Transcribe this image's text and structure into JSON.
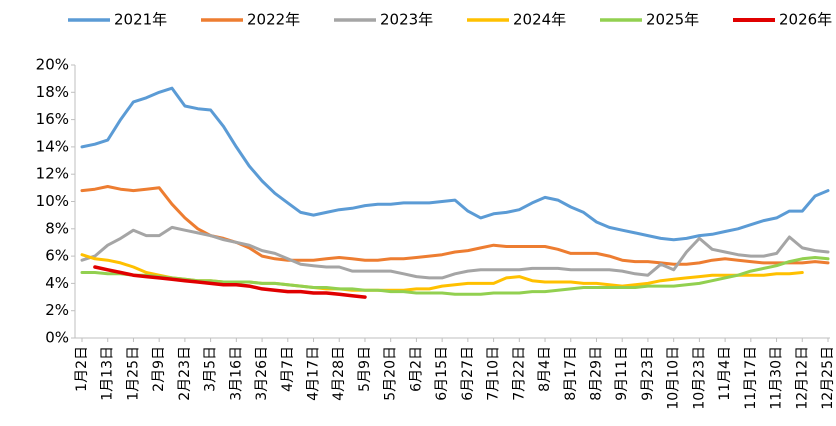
{
  "chart_data": {
    "type": "line",
    "categories": [
      "1月2日",
      null,
      "1月13日",
      null,
      "1月25日",
      null,
      "2月9日",
      null,
      "2月23日",
      null,
      "3月5日",
      null,
      "3月16日",
      null,
      "3月26日",
      null,
      "4月7日",
      null,
      "4月17日",
      null,
      "4月28日",
      null,
      "5月9日",
      null,
      "5月20日",
      null,
      "6月2日",
      null,
      "6月15日",
      null,
      "6月27日",
      null,
      "7月10日",
      null,
      "7月22日",
      null,
      "8月4日",
      null,
      "8月17日",
      null,
      "8月29日",
      null,
      "9月11日",
      null,
      "9月23日",
      null,
      "10月10日",
      null,
      "10月23日",
      null,
      "11月4日",
      null,
      "11月17日",
      null,
      "11月30日",
      null,
      "12月12日",
      null,
      "12月25日"
    ],
    "series": [
      {
        "name": "2021年",
        "color": "#5b9bd5",
        "values": [
          14.0,
          14.2,
          14.5,
          16.0,
          17.3,
          17.6,
          18.0,
          18.3,
          17.0,
          16.8,
          16.7,
          15.5,
          14.0,
          12.6,
          11.5,
          10.6,
          9.9,
          9.2,
          9.0,
          9.2,
          9.4,
          9.5,
          9.7,
          9.8,
          9.8,
          9.9,
          9.9,
          9.9,
          10.0,
          10.1,
          9.3,
          8.8,
          9.1,
          9.2,
          9.4,
          9.9,
          10.3,
          10.1,
          9.6,
          9.2,
          8.5,
          8.1,
          7.9,
          7.7,
          7.5,
          7.3,
          7.2,
          7.3,
          7.5,
          7.6,
          7.8,
          8.0,
          8.3,
          8.6,
          8.8,
          9.3,
          9.3,
          10.4,
          10.8
        ]
      },
      {
        "name": "2022年",
        "color": "#ed7d31",
        "values": [
          10.8,
          10.9,
          11.1,
          10.9,
          10.8,
          10.9,
          11.0,
          9.8,
          8.8,
          8.0,
          7.5,
          7.3,
          7.0,
          6.6,
          6.0,
          5.8,
          5.7,
          5.7,
          5.7,
          5.8,
          5.9,
          5.8,
          5.7,
          5.7,
          5.8,
          5.8,
          5.9,
          6.0,
          6.1,
          6.3,
          6.4,
          6.6,
          6.8,
          6.7,
          6.7,
          6.7,
          6.7,
          6.5,
          6.2,
          6.2,
          6.2,
          6.0,
          5.7,
          5.6,
          5.6,
          5.5,
          5.4,
          5.4,
          5.5,
          5.7,
          5.8,
          5.7,
          5.6,
          5.5,
          5.5,
          5.5,
          5.5,
          5.6,
          5.5
        ]
      },
      {
        "name": "2023年",
        "color": "#a5a5a5",
        "values": [
          5.7,
          6.0,
          6.8,
          7.3,
          7.9,
          7.5,
          7.5,
          8.1,
          7.9,
          7.7,
          7.5,
          7.2,
          7.0,
          6.8,
          6.4,
          6.2,
          5.8,
          5.4,
          5.3,
          5.2,
          5.2,
          4.9,
          4.9,
          4.9,
          4.9,
          4.7,
          4.5,
          4.4,
          4.4,
          4.7,
          4.9,
          5.0,
          5.0,
          5.0,
          5.0,
          5.1,
          5.1,
          5.1,
          5.0,
          5.0,
          5.0,
          5.0,
          4.9,
          4.7,
          4.6,
          5.4,
          5.0,
          6.3,
          7.3,
          6.5,
          6.3,
          6.1,
          6.0,
          6.0,
          6.2,
          7.4,
          6.6,
          6.4,
          6.3
        ]
      },
      {
        "name": "2024年",
        "color": "#ffc000",
        "values": [
          6.1,
          5.8,
          5.7,
          5.5,
          5.2,
          4.8,
          4.6,
          4.4,
          4.3,
          4.2,
          4.2,
          4.1,
          4.1,
          4.1,
          4.0,
          4.0,
          3.9,
          3.8,
          3.7,
          3.6,
          3.6,
          3.5,
          3.5,
          3.5,
          3.5,
          3.5,
          3.6,
          3.6,
          3.8,
          3.9,
          4.0,
          4.0,
          4.0,
          4.4,
          4.5,
          4.2,
          4.1,
          4.1,
          4.1,
          4.0,
          4.0,
          3.9,
          3.8,
          3.9,
          4.0,
          4.2,
          4.3,
          4.4,
          4.5,
          4.6,
          4.6,
          4.6,
          4.6,
          4.6,
          4.7,
          4.7,
          4.8,
          null,
          null
        ]
      },
      {
        "name": "2025年",
        "color": "#92d050",
        "values": [
          4.8,
          4.8,
          4.7,
          4.7,
          4.6,
          4.6,
          4.5,
          4.4,
          4.3,
          4.2,
          4.2,
          4.1,
          4.1,
          4.1,
          4.0,
          4.0,
          3.9,
          3.8,
          3.7,
          3.7,
          3.6,
          3.6,
          3.5,
          3.5,
          3.4,
          3.4,
          3.3,
          3.3,
          3.3,
          3.2,
          3.2,
          3.2,
          3.3,
          3.3,
          3.3,
          3.4,
          3.4,
          3.5,
          3.6,
          3.7,
          3.7,
          3.7,
          3.7,
          3.7,
          3.8,
          3.8,
          3.8,
          3.9,
          4.0,
          4.2,
          4.4,
          4.6,
          4.9,
          5.1,
          5.3,
          5.6,
          5.8,
          5.9,
          5.8
        ]
      },
      {
        "name": "2026年",
        "color": "#e00000",
        "values": [
          null,
          5.2,
          5.0,
          4.8,
          4.6,
          4.5,
          4.4,
          4.3,
          4.2,
          4.1,
          4.0,
          3.9,
          3.9,
          3.8,
          3.6,
          3.5,
          3.4,
          3.4,
          3.3,
          3.3,
          3.2,
          3.1,
          3.0,
          null,
          null,
          null,
          null,
          null,
          null,
          null,
          null,
          null,
          null,
          null,
          null,
          null,
          null,
          null,
          null,
          null,
          null,
          null,
          null,
          null,
          null,
          null,
          null,
          null,
          null,
          null,
          null,
          null,
          null,
          null,
          null,
          null,
          null,
          null,
          null
        ]
      }
    ],
    "ylim": [
      0,
      20
    ],
    "yticks": [
      {
        "value": 0,
        "label": "0%"
      },
      {
        "value": 2,
        "label": "2%"
      },
      {
        "value": 4,
        "label": "4%"
      },
      {
        "value": 6,
        "label": "6%"
      },
      {
        "value": 8,
        "label": "8%"
      },
      {
        "value": 10,
        "label": "10%"
      },
      {
        "value": 12,
        "label": "12%"
      },
      {
        "value": 14,
        "label": "14%"
      },
      {
        "value": 16,
        "label": "16%"
      },
      {
        "value": 18,
        "label": "18%"
      },
      {
        "value": 20,
        "label": "20%"
      }
    ],
    "grid": false,
    "legend": "top"
  }
}
